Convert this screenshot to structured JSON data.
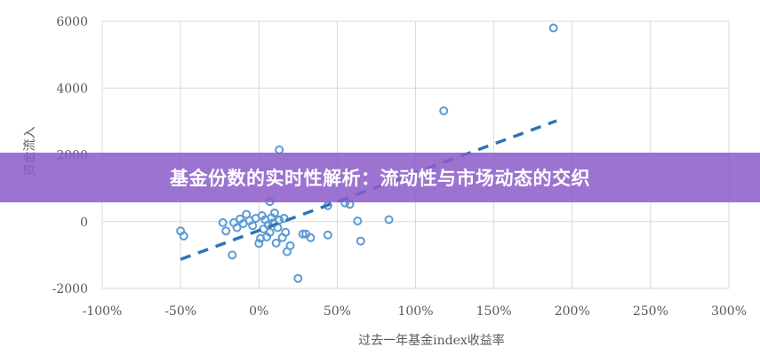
{
  "banner": {
    "title": "基金份数的实时性解析：流动性与市场动态的交织"
  },
  "colors": {
    "series": "#5b9bd5",
    "trend": "#2e75b6",
    "grid": "#d9d9d9",
    "text": "#595959",
    "banner": "#8c5cc8"
  },
  "chart_data": {
    "type": "scatter",
    "xlabel": "过去一年基金index收益率",
    "ylabel": "资金流入",
    "xlim": [
      -100,
      300
    ],
    "ylim": [
      -2000,
      6000
    ],
    "x_ticks": [
      -100,
      -50,
      0,
      50,
      100,
      150,
      200,
      250,
      300
    ],
    "x_tick_labels": [
      "-100%",
      "-50%",
      "0%",
      "50%",
      "100%",
      "150%",
      "200%",
      "250%",
      "300%"
    ],
    "y_ticks": [
      -2000,
      0,
      2000,
      4000,
      6000
    ],
    "y_tick_labels": [
      "-2000",
      "0",
      "2000",
      "4000",
      "6000"
    ],
    "grid": true,
    "points": [
      {
        "x": 188,
        "y": 5800
      },
      {
        "x": 118,
        "y": 3320
      },
      {
        "x": 13,
        "y": 2150
      },
      {
        "x": 7,
        "y": 600
      },
      {
        "x": 44,
        "y": 480
      },
      {
        "x": 55,
        "y": 560
      },
      {
        "x": 58,
        "y": 520
      },
      {
        "x": 63,
        "y": 20
      },
      {
        "x": 83,
        "y": 60
      },
      {
        "x": -50,
        "y": -280
      },
      {
        "x": -48,
        "y": -430
      },
      {
        "x": -23,
        "y": -30
      },
      {
        "x": -21,
        "y": -280
      },
      {
        "x": -17,
        "y": -1000
      },
      {
        "x": -16,
        "y": -30
      },
      {
        "x": -14,
        "y": -180
      },
      {
        "x": -12,
        "y": 80
      },
      {
        "x": -10,
        "y": -60
      },
      {
        "x": -8,
        "y": 220
      },
      {
        "x": -6,
        "y": 30
      },
      {
        "x": -4,
        "y": -120
      },
      {
        "x": -2,
        "y": 100
      },
      {
        "x": 0,
        "y": -650
      },
      {
        "x": 1,
        "y": -500
      },
      {
        "x": 2,
        "y": 180
      },
      {
        "x": 3,
        "y": -220
      },
      {
        "x": 4,
        "y": 60
      },
      {
        "x": 5,
        "y": -460
      },
      {
        "x": 6,
        "y": -100
      },
      {
        "x": 7,
        "y": -320
      },
      {
        "x": 8,
        "y": 120
      },
      {
        "x": 9,
        "y": -40
      },
      {
        "x": 10,
        "y": 260
      },
      {
        "x": 11,
        "y": -640
      },
      {
        "x": 12,
        "y": -180
      },
      {
        "x": 13,
        "y": 50
      },
      {
        "x": 15,
        "y": -480
      },
      {
        "x": 16,
        "y": 100
      },
      {
        "x": 17,
        "y": -320
      },
      {
        "x": 18,
        "y": -900
      },
      {
        "x": 20,
        "y": -720
      },
      {
        "x": 25,
        "y": -1700
      },
      {
        "x": 28,
        "y": -370
      },
      {
        "x": 30,
        "y": -370
      },
      {
        "x": 33,
        "y": -480
      },
      {
        "x": 44,
        "y": -400
      },
      {
        "x": 65,
        "y": -580
      }
    ],
    "trendline": {
      "from": [
        -50,
        -1130
      ],
      "to": [
        190,
        3020
      ],
      "style": "dashed"
    }
  }
}
